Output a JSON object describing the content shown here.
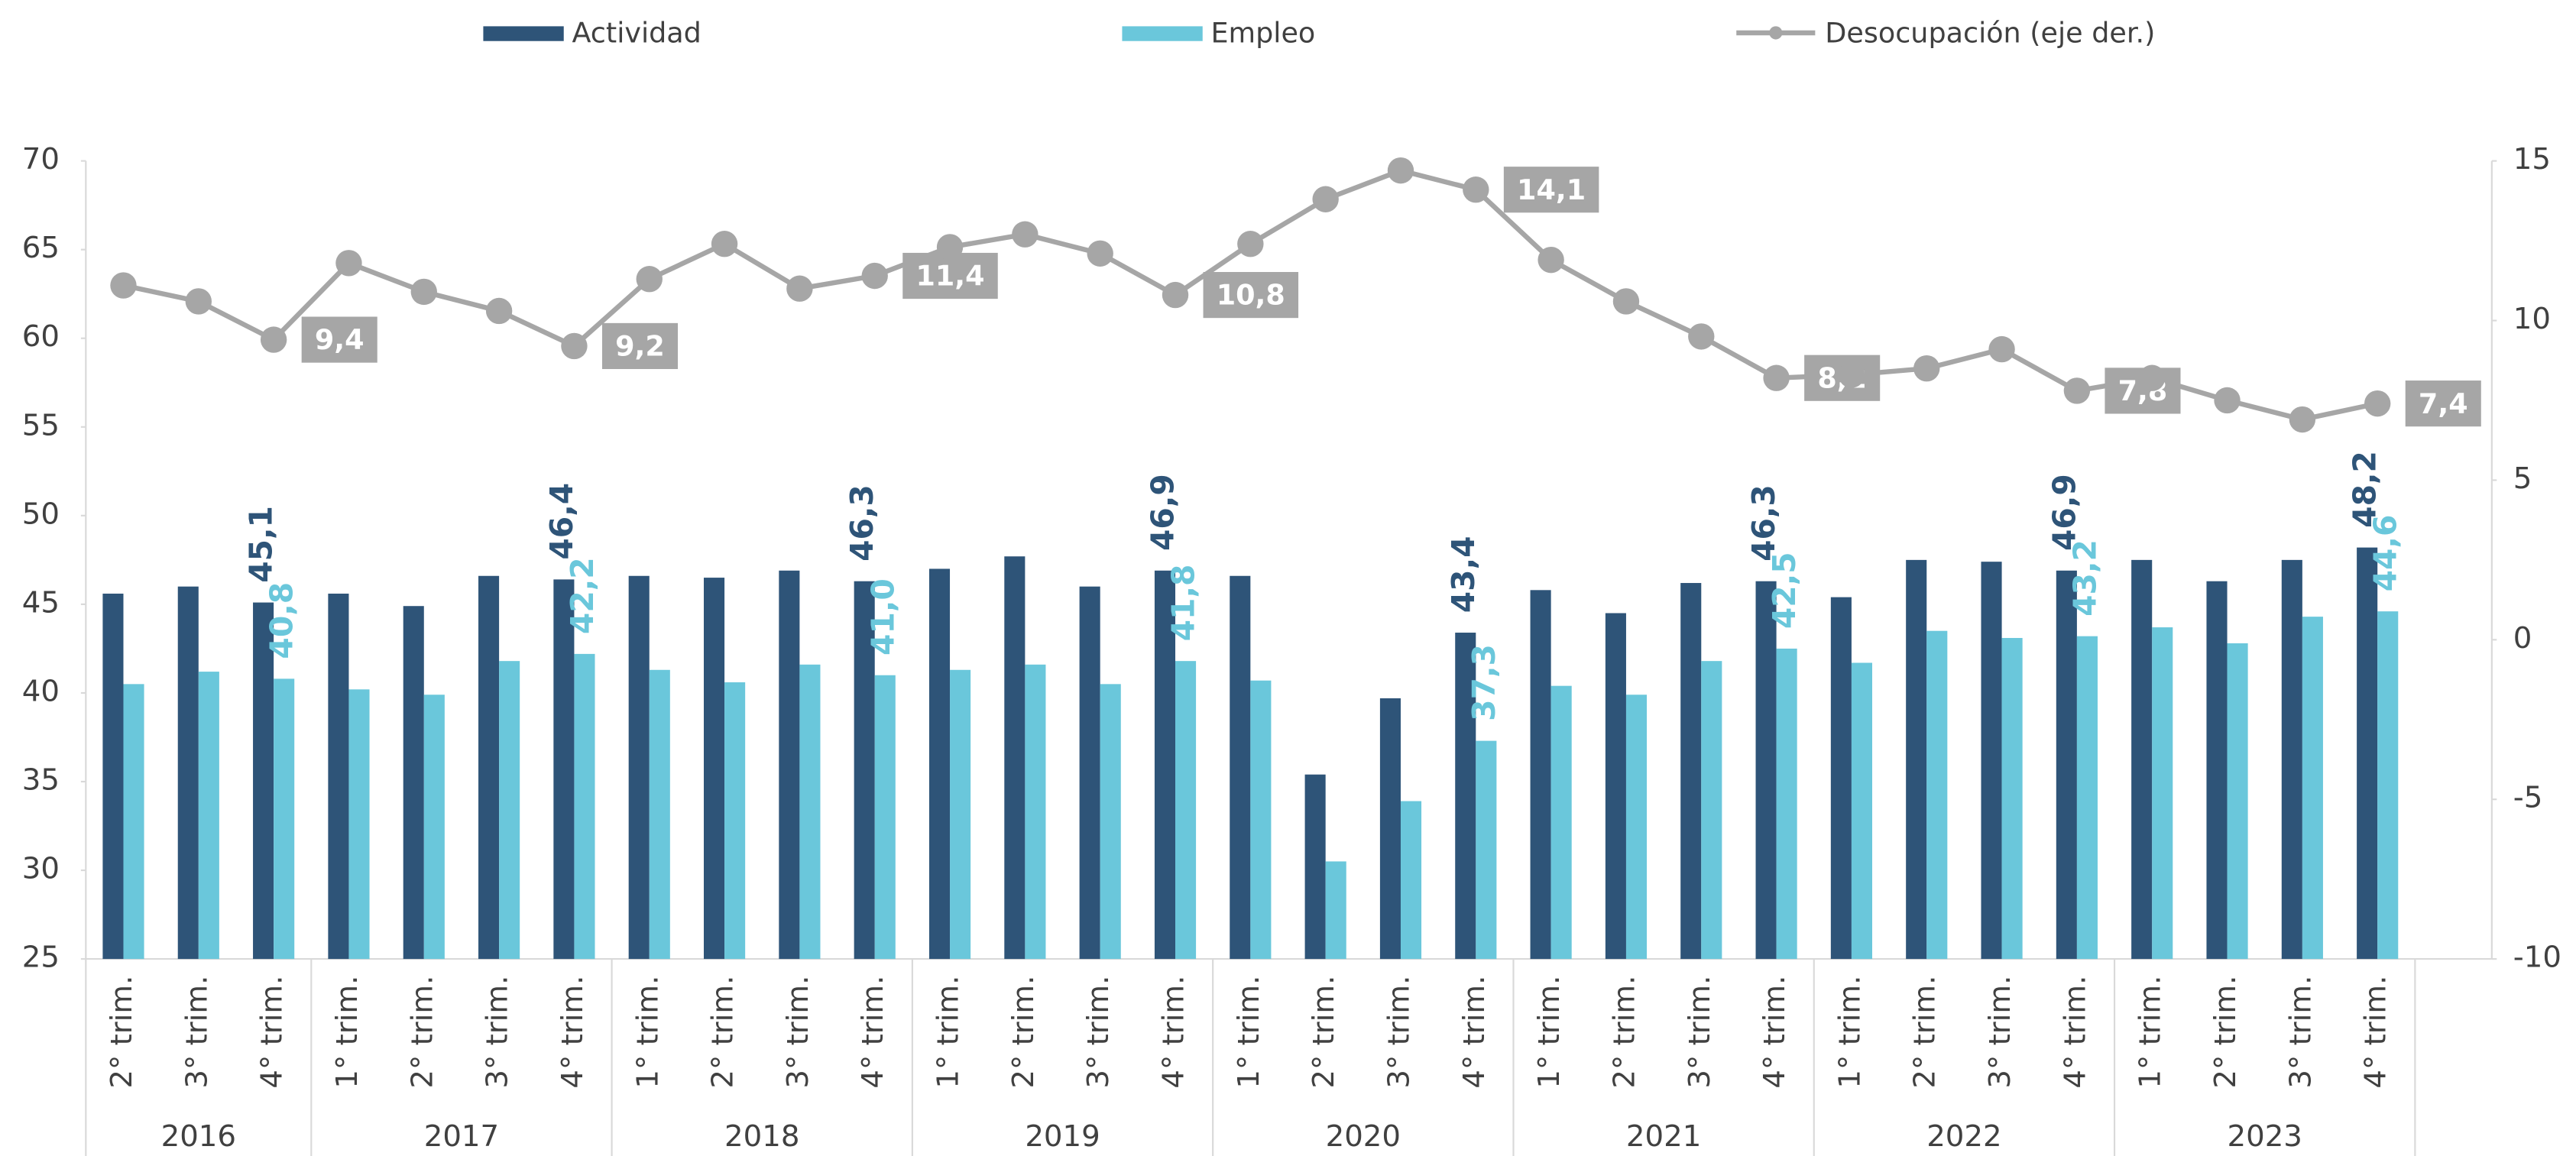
{
  "chart_data": {
    "type": "bar-line",
    "categories": [
      "2° trim.",
      "3° trim.",
      "4° trim.",
      "1° trim.",
      "2° trim.",
      "3° trim.",
      "4° trim.",
      "1° trim.",
      "2° trim.",
      "3° trim.",
      "4° trim.",
      "1° trim.",
      "2° trim.",
      "3° trim.",
      "4° trim.",
      "1° trim.",
      "2° trim.",
      "3° trim.",
      "4° trim.",
      "1° trim.",
      "2° trim.",
      "3° trim.",
      "4° trim.",
      "1° trim.",
      "2° trim.",
      "3° trim.",
      "4° trim.",
      "1° trim.",
      "2° trim.",
      "3° trim.",
      "4° trim."
    ],
    "year_groups": [
      {
        "label": "2016",
        "count": 3
      },
      {
        "label": "2017",
        "count": 4
      },
      {
        "label": "2018",
        "count": 4
      },
      {
        "label": "2019",
        "count": 4
      },
      {
        "label": "2020",
        "count": 4
      },
      {
        "label": "2021",
        "count": 4
      },
      {
        "label": "2022",
        "count": 4
      },
      {
        "label": "2023",
        "count": 4
      }
    ],
    "series": [
      {
        "name": "Actividad",
        "type": "bar",
        "color": "#2e5478",
        "values": [
          45.6,
          46.0,
          45.1,
          45.6,
          44.9,
          46.6,
          46.4,
          46.6,
          46.5,
          46.9,
          46.3,
          47.0,
          47.7,
          46.0,
          46.9,
          46.6,
          35.4,
          39.7,
          43.4,
          45.8,
          44.5,
          46.2,
          46.3,
          45.4,
          47.5,
          47.4,
          46.9,
          47.5,
          46.3,
          47.5,
          48.2
        ],
        "value_labels": [
          null,
          null,
          "45,1",
          null,
          null,
          null,
          "46,4",
          null,
          null,
          null,
          "46,3",
          null,
          null,
          null,
          "46,9",
          null,
          null,
          null,
          "43,4",
          null,
          null,
          null,
          "46,3",
          null,
          null,
          null,
          "46,9",
          null,
          null,
          null,
          "48,2"
        ]
      },
      {
        "name": "Empleo",
        "type": "bar",
        "color": "#6ac7db",
        "values": [
          40.5,
          41.2,
          40.8,
          40.2,
          39.9,
          41.8,
          42.2,
          41.3,
          40.6,
          41.6,
          41.0,
          41.3,
          41.6,
          40.5,
          41.8,
          40.7,
          30.5,
          33.9,
          37.3,
          40.4,
          39.9,
          41.8,
          42.5,
          41.7,
          43.5,
          43.1,
          43.2,
          43.7,
          42.8,
          44.3,
          44.6
        ],
        "value_labels": [
          null,
          null,
          "40,8",
          null,
          null,
          null,
          "42,2",
          null,
          null,
          null,
          "41,0",
          null,
          null,
          null,
          "41,8",
          null,
          null,
          null,
          "37,3",
          null,
          null,
          null,
          "42,5",
          null,
          null,
          null,
          "43,2",
          null,
          null,
          null,
          "44,6"
        ]
      },
      {
        "name": "Desocupación (eje der.)",
        "type": "line",
        "axis": "y2",
        "color": "#a6a6a6",
        "values": [
          11.1,
          10.6,
          9.4,
          11.8,
          10.9,
          10.3,
          9.2,
          11.3,
          12.4,
          11.0,
          11.4,
          12.3,
          12.7,
          12.1,
          10.8,
          12.4,
          13.8,
          14.7,
          14.1,
          11.9,
          10.6,
          9.5,
          8.2,
          8.3,
          8.5,
          9.1,
          7.8,
          8.2,
          7.5,
          6.9,
          7.4
        ],
        "value_labels": [
          null,
          null,
          "9,4",
          null,
          null,
          null,
          "9,2",
          null,
          null,
          null,
          "11,4",
          null,
          null,
          null,
          "10,8",
          null,
          null,
          null,
          "14,1",
          null,
          null,
          null,
          "8,2",
          null,
          null,
          null,
          "7,8",
          null,
          null,
          null,
          "7,4"
        ]
      }
    ],
    "ylim": [
      25,
      70
    ],
    "yticks": [
      25,
      30,
      35,
      40,
      45,
      50,
      55,
      60,
      65,
      70
    ],
    "y2lim": [
      -10,
      15
    ],
    "y2ticks": [
      -10,
      -5,
      0,
      5,
      10,
      15
    ],
    "legend": "top"
  }
}
